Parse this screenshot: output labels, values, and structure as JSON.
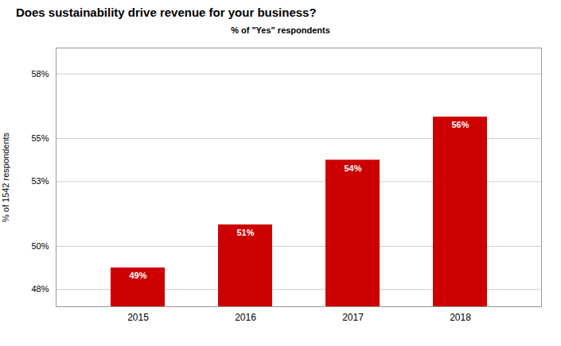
{
  "chart_data": {
    "type": "bar",
    "title": "Does sustainability drive revenue for your business?",
    "subtitle": "% of \"Yes\" respondents",
    "ylabel": "% of 1542 respondents",
    "categories": [
      "2015",
      "2016",
      "2017",
      "2018"
    ],
    "values": [
      49,
      51,
      54,
      56
    ],
    "value_labels": [
      "49%",
      "51%",
      "54%",
      "56%"
    ],
    "data_labels": true,
    "color": "#cc0000",
    "ylim": [
      47.2,
      59.2
    ],
    "yticks": [
      {
        "value": 48,
        "label": "48%"
      },
      {
        "value": 50,
        "label": "50%"
      },
      {
        "value": 53,
        "label": "53%"
      },
      {
        "value": 55,
        "label": "55%"
      },
      {
        "value": 58,
        "label": "58%"
      }
    ],
    "grid": true
  }
}
